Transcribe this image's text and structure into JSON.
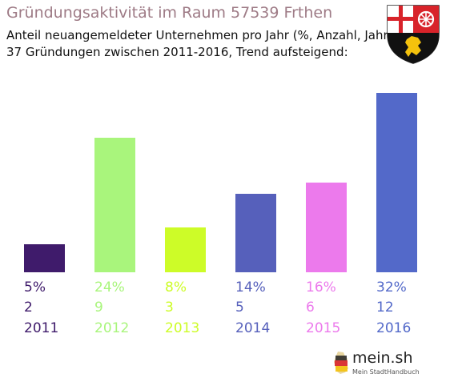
{
  "header": {
    "title": "Gründungsaktivität im Raum 57539 Frthen",
    "subtitle_line1": "Anteil neuangemeldeter Unternehmen pro Jahr (%, Anzahl, Jahr)",
    "subtitle_line2": "37 Gründungen zwischen 2011-2016, Trend aufsteigend:"
  },
  "crest": {
    "icon": "rhineland-palatinate-coat-of-arms-icon"
  },
  "chart_data": {
    "type": "bar",
    "categories": [
      "2011",
      "2012",
      "2013",
      "2014",
      "2015",
      "2016"
    ],
    "values": [
      5,
      24,
      8,
      14,
      16,
      32
    ],
    "percent_labels": [
      "5%",
      "24%",
      "8%",
      "14%",
      "16%",
      "32%"
    ],
    "counts": [
      "2",
      "9",
      "3",
      "5",
      "6",
      "12"
    ],
    "colors": [
      "#3f1b6b",
      "#a9f57c",
      "#cdfc28",
      "#5660bb",
      "#ec7aec",
      "#5369c9"
    ],
    "ylim": [
      0,
      32
    ],
    "grid": false,
    "legend": "none"
  },
  "footer": {
    "brand": "mein.sh",
    "tagline": "Mein StadtHandbuch",
    "icon": "germany-map-icon"
  }
}
